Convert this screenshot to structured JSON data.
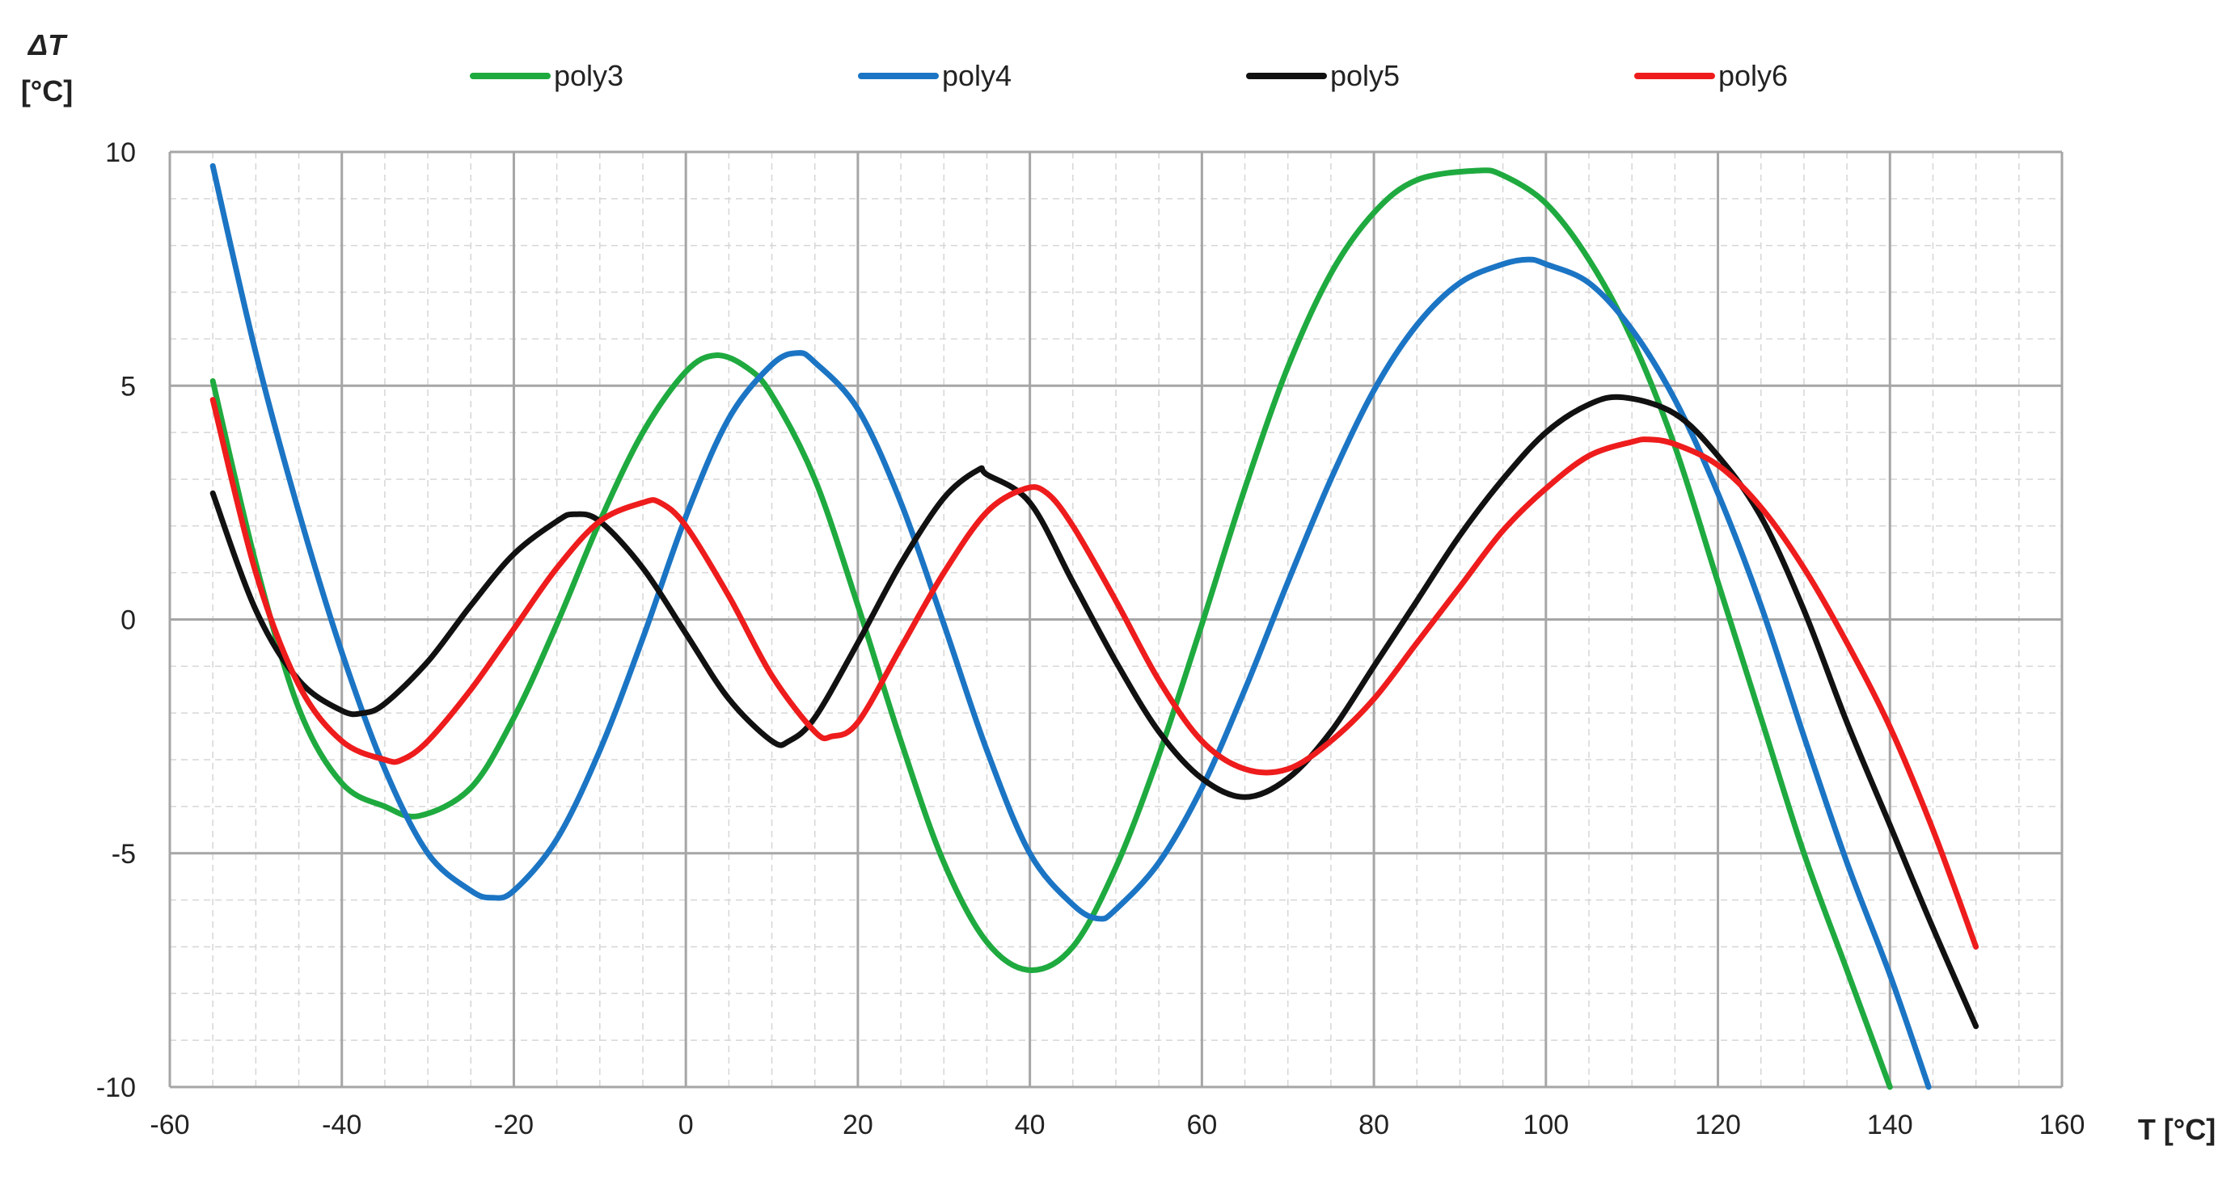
{
  "chart_data": {
    "type": "line",
    "y_axis_title_line1": "ΔT",
    "y_axis_title_line2": "[°C]",
    "x_axis_title": "T [°C]",
    "xlim": [
      -60,
      160
    ],
    "ylim": [
      -10,
      10
    ],
    "x_ticks": [
      -60,
      -40,
      -20,
      0,
      20,
      40,
      60,
      80,
      100,
      120,
      140,
      160
    ],
    "y_ticks": [
      -10,
      -5,
      0,
      5,
      10
    ],
    "x_tick_labels": [
      "-60",
      "-40",
      "-20",
      "0",
      "20",
      "40",
      "60",
      "80",
      "100",
      "120",
      "140",
      "160"
    ],
    "y_tick_labels": [
      "-10",
      "-5",
      "0",
      "5",
      "10"
    ],
    "x_minor_step": 5,
    "y_minor_step": 1,
    "grid": true,
    "legend_position": "top",
    "series": [
      {
        "name": "poly3",
        "color": "#1faa3f",
        "points": [
          [
            -55,
            5.1
          ],
          [
            -50,
            1.2
          ],
          [
            -45,
            -1.9
          ],
          [
            -40,
            -3.5
          ],
          [
            -35,
            -4.0
          ],
          [
            -31,
            -4.2
          ],
          [
            -25,
            -3.6
          ],
          [
            -20,
            -2.1
          ],
          [
            -15,
            -0.1
          ],
          [
            -10,
            2.1
          ],
          [
            -5,
            4.0
          ],
          [
            0,
            5.3
          ],
          [
            3.5,
            5.65
          ],
          [
            7,
            5.4
          ],
          [
            10,
            4.8
          ],
          [
            15,
            3.0
          ],
          [
            20,
            0.3
          ],
          [
            25,
            -2.6
          ],
          [
            30,
            -5.2
          ],
          [
            35,
            -6.9
          ],
          [
            40,
            -7.5
          ],
          [
            45,
            -7.0
          ],
          [
            50,
            -5.3
          ],
          [
            55,
            -2.9
          ],
          [
            60,
            -0.1
          ],
          [
            65,
            2.8
          ],
          [
            70,
            5.4
          ],
          [
            75,
            7.4
          ],
          [
            80,
            8.7
          ],
          [
            85,
            9.4
          ],
          [
            92,
            9.6
          ],
          [
            95,
            9.5
          ],
          [
            100,
            8.9
          ],
          [
            105,
            7.7
          ],
          [
            110,
            6.0
          ],
          [
            115,
            3.7
          ],
          [
            120,
            0.8
          ],
          [
            125,
            -2.1
          ],
          [
            130,
            -5.0
          ],
          [
            135,
            -7.5
          ],
          [
            140,
            -10.0
          ]
        ]
      },
      {
        "name": "poly4",
        "color": "#1b75c4",
        "points": [
          [
            -55,
            9.7
          ],
          [
            -50,
            5.7
          ],
          [
            -45,
            2.3
          ],
          [
            -40,
            -0.7
          ],
          [
            -35,
            -3.2
          ],
          [
            -30,
            -5.0
          ],
          [
            -25,
            -5.8
          ],
          [
            -22.5,
            -5.95
          ],
          [
            -20,
            -5.8
          ],
          [
            -15,
            -4.7
          ],
          [
            -10,
            -2.8
          ],
          [
            -5,
            -0.4
          ],
          [
            0,
            2.2
          ],
          [
            5,
            4.3
          ],
          [
            10,
            5.45
          ],
          [
            13,
            5.7
          ],
          [
            15,
            5.5
          ],
          [
            20,
            4.5
          ],
          [
            25,
            2.5
          ],
          [
            30,
            -0.1
          ],
          [
            35,
            -2.8
          ],
          [
            40,
            -5.0
          ],
          [
            45,
            -6.1
          ],
          [
            48,
            -6.4
          ],
          [
            50,
            -6.2
          ],
          [
            55,
            -5.2
          ],
          [
            60,
            -3.6
          ],
          [
            65,
            -1.5
          ],
          [
            70,
            0.8
          ],
          [
            75,
            3.0
          ],
          [
            80,
            4.9
          ],
          [
            85,
            6.3
          ],
          [
            90,
            7.2
          ],
          [
            95,
            7.6
          ],
          [
            98,
            7.7
          ],
          [
            100,
            7.6
          ],
          [
            105,
            7.2
          ],
          [
            110,
            6.2
          ],
          [
            115,
            4.7
          ],
          [
            120,
            2.7
          ],
          [
            125,
            0.3
          ],
          [
            130,
            -2.5
          ],
          [
            135,
            -5.2
          ],
          [
            140,
            -7.6
          ],
          [
            144.5,
            -10.0
          ]
        ]
      },
      {
        "name": "poly5",
        "color": "#111111",
        "points": [
          [
            -55,
            2.7
          ],
          [
            -50,
            0.2
          ],
          [
            -45,
            -1.3
          ],
          [
            -40,
            -1.95
          ],
          [
            -37.5,
            -2.0
          ],
          [
            -35,
            -1.8
          ],
          [
            -30,
            -0.9
          ],
          [
            -25,
            0.3
          ],
          [
            -20,
            1.4
          ],
          [
            -15,
            2.1
          ],
          [
            -13,
            2.25
          ],
          [
            -10,
            2.1
          ],
          [
            -5,
            1.1
          ],
          [
            0,
            -0.3
          ],
          [
            5,
            -1.7
          ],
          [
            10,
            -2.6
          ],
          [
            12,
            -2.6
          ],
          [
            15,
            -2.1
          ],
          [
            20,
            -0.5
          ],
          [
            25,
            1.2
          ],
          [
            30,
            2.6
          ],
          [
            34,
            3.2
          ],
          [
            35,
            3.1
          ],
          [
            40,
            2.5
          ],
          [
            45,
            0.8
          ],
          [
            50,
            -0.9
          ],
          [
            55,
            -2.4
          ],
          [
            60,
            -3.4
          ],
          [
            65,
            -3.8
          ],
          [
            70,
            -3.4
          ],
          [
            75,
            -2.4
          ],
          [
            80,
            -1.0
          ],
          [
            85,
            0.4
          ],
          [
            90,
            1.8
          ],
          [
            95,
            3.0
          ],
          [
            100,
            4.0
          ],
          [
            105,
            4.6
          ],
          [
            109,
            4.75
          ],
          [
            115,
            4.4
          ],
          [
            120,
            3.5
          ],
          [
            125,
            2.2
          ],
          [
            130,
            0.2
          ],
          [
            135,
            -2.2
          ],
          [
            140,
            -4.4
          ],
          [
            145,
            -6.6
          ],
          [
            150,
            -8.7
          ]
        ]
      },
      {
        "name": "poly6",
        "color": "#ee1c1c",
        "points": [
          [
            -55,
            4.7
          ],
          [
            -50,
            1.0
          ],
          [
            -45,
            -1.4
          ],
          [
            -40,
            -2.6
          ],
          [
            -35,
            -3.0
          ],
          [
            -33,
            -3.0
          ],
          [
            -30,
            -2.6
          ],
          [
            -25,
            -1.5
          ],
          [
            -20,
            -0.2
          ],
          [
            -15,
            1.1
          ],
          [
            -10,
            2.1
          ],
          [
            -5,
            2.5
          ],
          [
            -3,
            2.5
          ],
          [
            0,
            2.0
          ],
          [
            5,
            0.5
          ],
          [
            10,
            -1.2
          ],
          [
            15,
            -2.4
          ],
          [
            17,
            -2.5
          ],
          [
            20,
            -2.2
          ],
          [
            25,
            -0.6
          ],
          [
            30,
            1.0
          ],
          [
            35,
            2.3
          ],
          [
            39.5,
            2.8
          ],
          [
            42,
            2.7
          ],
          [
            45,
            2.0
          ],
          [
            50,
            0.4
          ],
          [
            55,
            -1.3
          ],
          [
            60,
            -2.6
          ],
          [
            65,
            -3.2
          ],
          [
            70,
            -3.2
          ],
          [
            75,
            -2.6
          ],
          [
            80,
            -1.7
          ],
          [
            85,
            -0.5
          ],
          [
            90,
            0.7
          ],
          [
            95,
            1.9
          ],
          [
            100,
            2.8
          ],
          [
            105,
            3.5
          ],
          [
            110,
            3.8
          ],
          [
            112,
            3.85
          ],
          [
            115,
            3.75
          ],
          [
            120,
            3.3
          ],
          [
            125,
            2.4
          ],
          [
            130,
            1.1
          ],
          [
            135,
            -0.5
          ],
          [
            140,
            -2.3
          ],
          [
            145,
            -4.5
          ],
          [
            150,
            -7.0
          ]
        ]
      }
    ]
  }
}
